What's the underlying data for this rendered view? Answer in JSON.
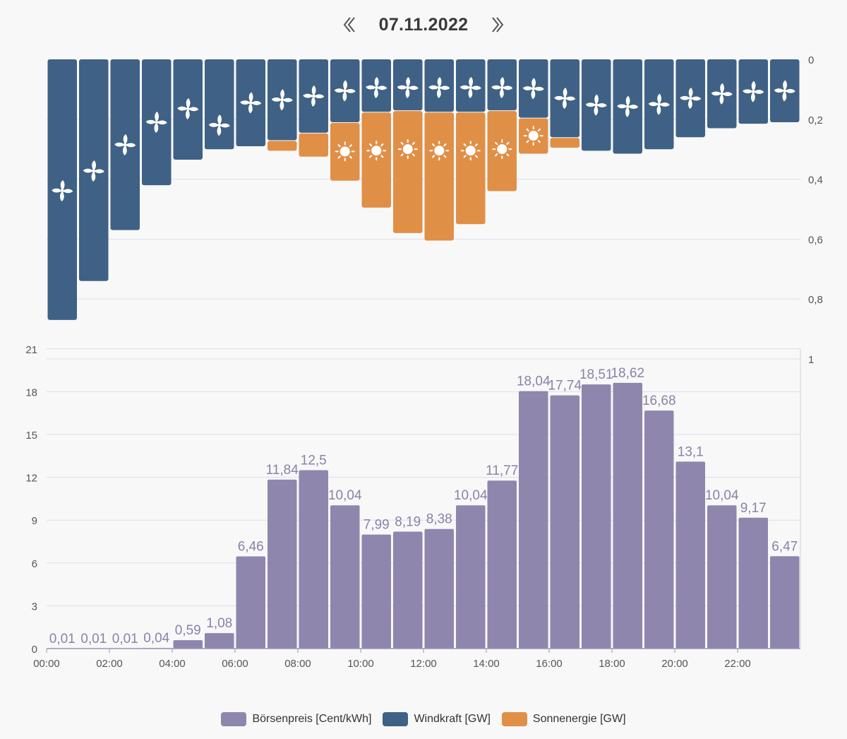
{
  "header": {
    "date": "07.11.2022"
  },
  "colors": {
    "wind": "#3f6185",
    "solar": "#e08f47",
    "price": "#8f86ad",
    "price_label": "#8a82a8",
    "grid": "#dcdcf0",
    "axis_text": "#555555"
  },
  "legend": [
    {
      "label": "Börsenpreis [Cent/kWh]",
      "color": "#8f86ad"
    },
    {
      "label": "Windkraft [GW]",
      "color": "#3f6185"
    },
    {
      "label": "Sonnenergie [GW]",
      "color": "#e08f47"
    }
  ],
  "chart_data": [
    {
      "type": "bar",
      "stacked": true,
      "inverted": true,
      "y_axis_side": "right",
      "ylim": [
        0,
        1
      ],
      "y_ticks": [
        "0",
        "0,2",
        "0,4",
        "0,6",
        "0,8",
        "1"
      ],
      "series": [
        {
          "name": "Windkraft [GW]",
          "values": [
            0.87,
            0.74,
            0.57,
            0.42,
            0.335,
            0.3,
            0.29,
            0.27,
            0.245,
            0.21,
            0.175,
            0.17,
            0.175,
            0.175,
            0.17,
            0.195,
            0.26,
            0.305,
            0.315,
            0.3,
            0.26,
            0.23,
            0.215,
            0.21
          ],
          "icon": "wind-icon"
        },
        {
          "name": "Sonnenergie [GW]",
          "values": [
            0,
            0,
            0,
            0,
            0,
            0,
            0,
            0.035,
            0.08,
            0.195,
            0.32,
            0.41,
            0.43,
            0.375,
            0.27,
            0.12,
            0.035,
            0,
            0,
            0,
            0,
            0,
            0,
            0
          ],
          "icon": "sun-icon",
          "icon_min": 0.1
        }
      ]
    },
    {
      "type": "bar",
      "x_ticks": [
        "00:00",
        "02:00",
        "04:00",
        "06:00",
        "08:00",
        "10:00",
        "12:00",
        "14:00",
        "16:00",
        "18:00",
        "20:00",
        "22:00"
      ],
      "ylim": [
        0,
        21
      ],
      "y_ticks": [
        "0",
        "3",
        "6",
        "9",
        "12",
        "15",
        "18",
        "21"
      ],
      "series": [
        {
          "name": "Börsenpreis [Cent/kWh]",
          "values": [
            0.01,
            0.01,
            0.01,
            0.04,
            0.59,
            1.08,
            6.46,
            11.84,
            12.5,
            10.04,
            7.99,
            8.19,
            8.38,
            10.04,
            11.77,
            18.04,
            17.74,
            18.51,
            18.62,
            16.68,
            13.1,
            10.04,
            9.17,
            6.47
          ],
          "labels": [
            "0,01",
            "0,01",
            "0,01",
            "0,04",
            "0,59",
            "1,08",
            "6,46",
            "11,84",
            "12,5",
            "10,04",
            "7,99",
            "8,19",
            "8,38",
            "10,04",
            "11,77",
            "18,04",
            "17,74",
            "18,51",
            "18,62",
            "16,68",
            "13,1",
            "10,04",
            "9,17",
            "6,47"
          ]
        }
      ]
    }
  ]
}
